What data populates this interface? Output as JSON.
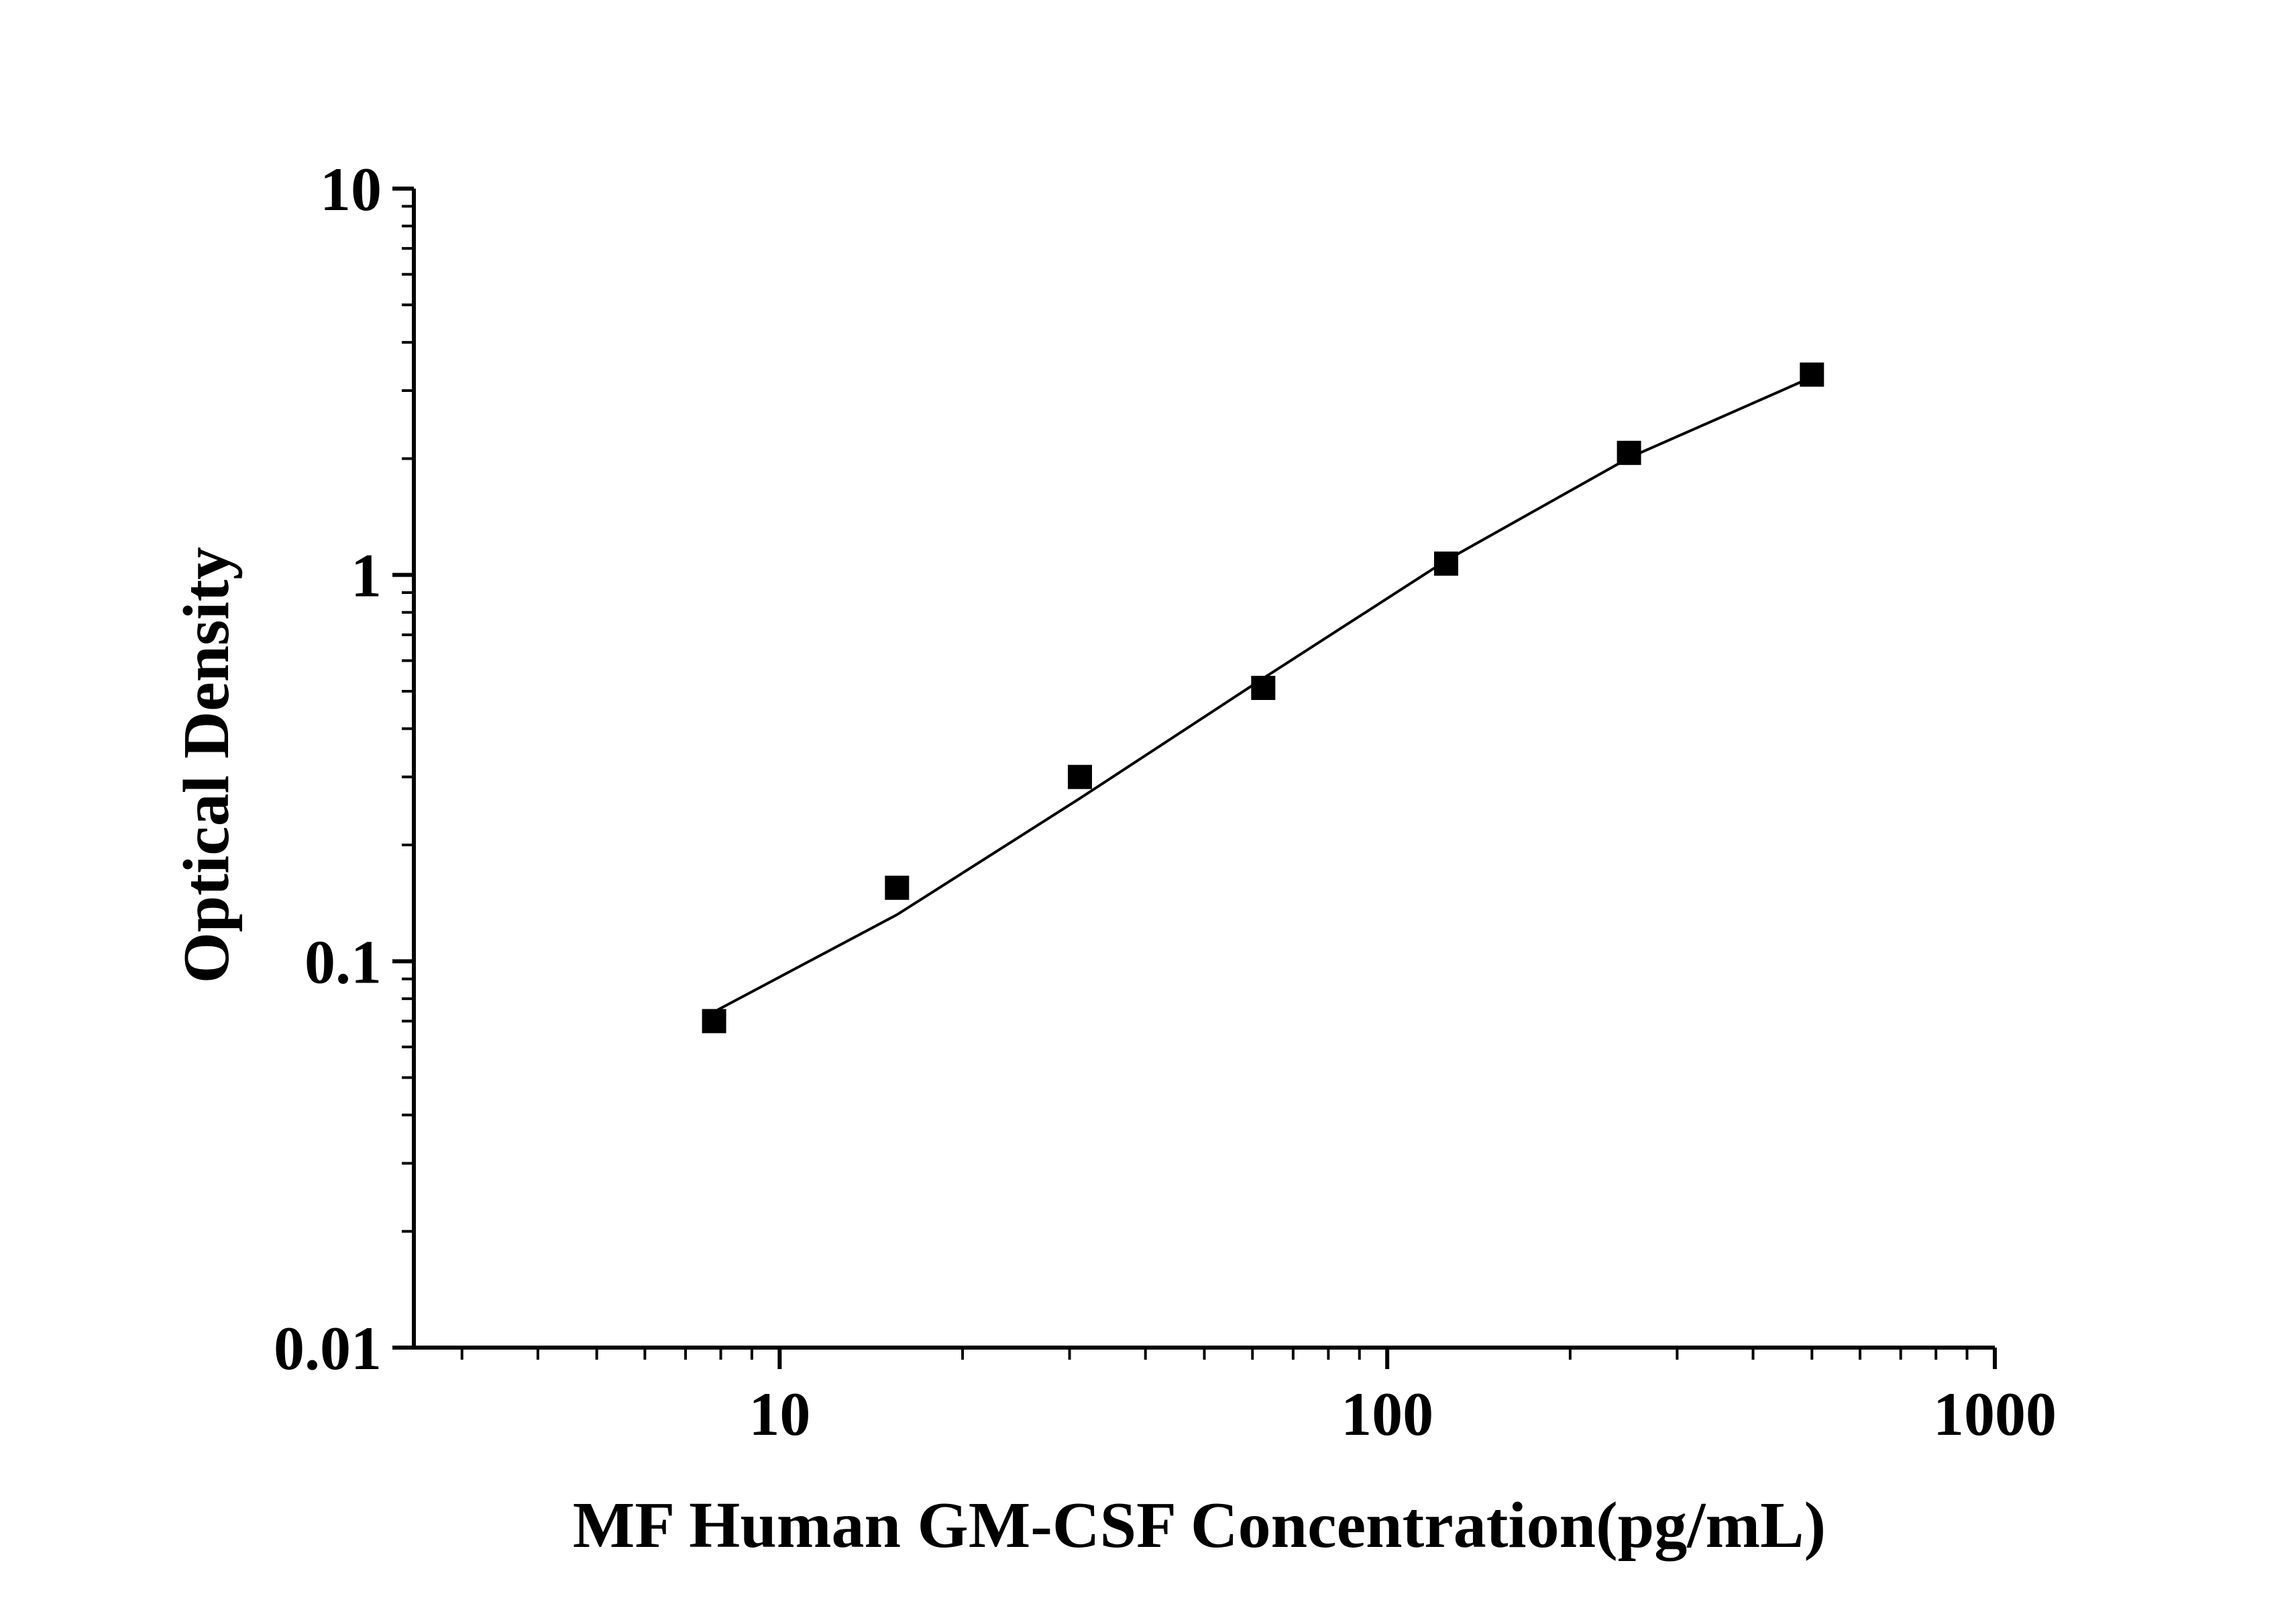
{
  "chart_data": {
    "type": "scatter",
    "title": "",
    "xlabel": "MF Human GM-CSF Concentration(pg/mL)",
    "ylabel": "Optical Density",
    "x_scale": "log",
    "y_scale": "log",
    "xlim": [
      2.5,
      1000
    ],
    "ylim": [
      0.01,
      10
    ],
    "x_ticks": [
      10,
      100,
      1000
    ],
    "x_tick_labels": [
      "10",
      "100",
      "1000"
    ],
    "y_ticks": [
      0.01,
      0.1,
      1,
      10
    ],
    "y_tick_labels": [
      "0.01",
      "0.1",
      "1",
      "10"
    ],
    "grid": false,
    "legend": "none",
    "series": [
      {
        "x": [
          7.8,
          15.6,
          31.2,
          62.5,
          125,
          250,
          500
        ],
        "y": [
          0.07,
          0.155,
          0.3,
          0.51,
          1.07,
          2.07,
          3.3
        ],
        "marker": "square",
        "color": "#000000"
      }
    ],
    "fit_curve": {
      "x": [
        7.8,
        15.6,
        31.2,
        62.5,
        125,
        250,
        500
      ],
      "y": [
        0.074,
        0.132,
        0.264,
        0.54,
        1.09,
        2.01,
        3.25
      ],
      "color": "#000000"
    }
  }
}
